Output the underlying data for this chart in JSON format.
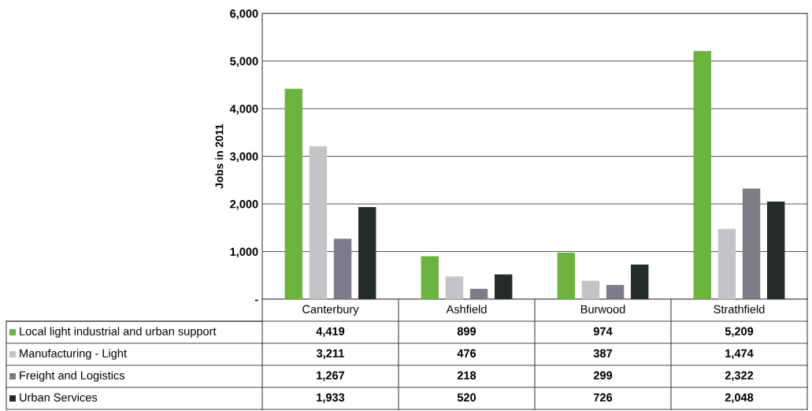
{
  "chart_data": {
    "type": "bar",
    "ylabel": "Jobs in 2011",
    "categories": [
      "Canterbury",
      "Ashfield",
      "Burwood",
      "Strathfield"
    ],
    "series": [
      {
        "name": "Local light industrial and urban support",
        "color": "#6db33f",
        "values": [
          4419,
          899,
          974,
          5209
        ],
        "value_labels": [
          "4,419",
          "899",
          "974",
          "5,209"
        ]
      },
      {
        "name": "Manufacturing - Light",
        "color": "#c4c4c8",
        "values": [
          3211,
          476,
          387,
          1474
        ],
        "value_labels": [
          "3,211",
          "476",
          "387",
          "1,474"
        ]
      },
      {
        "name": "Freight and Logistics",
        "color": "#7c7c88",
        "values": [
          1267,
          218,
          299,
          2322
        ],
        "value_labels": [
          "1,267",
          "218",
          "299",
          "2,322"
        ]
      },
      {
        "name": "Urban Services",
        "color": "#262b2b",
        "values": [
          1933,
          520,
          726,
          2048
        ],
        "value_labels": [
          "1,933",
          "520",
          "726",
          "2,048"
        ]
      }
    ],
    "ylim": [
      0,
      6000
    ],
    "yticks": [
      {
        "value": 0,
        "label": "-"
      },
      {
        "value": 1000,
        "label": "1,000"
      },
      {
        "value": 2000,
        "label": "2,000"
      },
      {
        "value": 3000,
        "label": "3,000"
      },
      {
        "value": 4000,
        "label": "4,000"
      },
      {
        "value": 5000,
        "label": "5,000"
      },
      {
        "value": 6000,
        "label": "6,000"
      }
    ],
    "grid": "y",
    "legend": "bottom"
  }
}
